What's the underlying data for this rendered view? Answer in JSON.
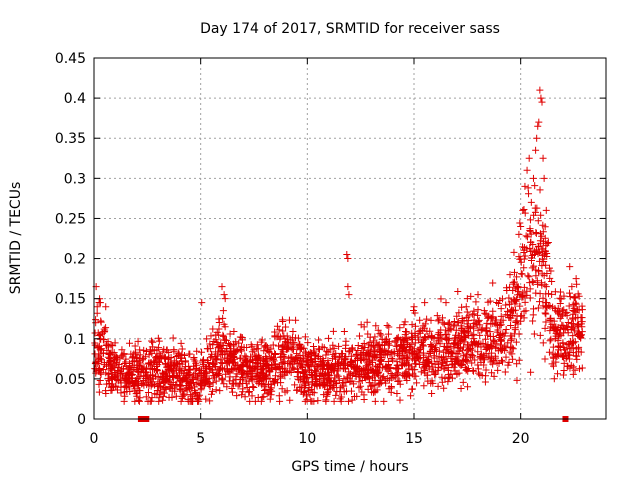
{
  "chart_data": {
    "type": "scatter",
    "title": "Day 174 of 2017, SRMTID for receiver sass",
    "xlabel": "GPS time / hours",
    "ylabel": "SRMTID / TECUs",
    "xlim": [
      0,
      24
    ],
    "ylim": [
      0,
      0.45
    ],
    "xticks": [
      0,
      5,
      10,
      15,
      20
    ],
    "xtick_labels": [
      "0",
      "5",
      "10",
      "15",
      "20"
    ],
    "yticks": [
      0,
      0.05,
      0.1,
      0.15,
      0.2,
      0.25,
      0.3,
      0.35,
      0.4,
      0.45
    ],
    "ytick_labels": [
      "0",
      "0.05",
      "0.1",
      "0.15",
      "0.2",
      "0.25",
      "0.3",
      "0.35",
      "0.4",
      "0.45"
    ],
    "grid": true,
    "marker": "+",
    "series_color": "#e00000",
    "seed": 174,
    "trend": [
      [
        0.0,
        0.09
      ],
      [
        0.5,
        0.08
      ],
      [
        1.0,
        0.06
      ],
      [
        1.5,
        0.055
      ],
      [
        2.0,
        0.055
      ],
      [
        3.0,
        0.06
      ],
      [
        4.0,
        0.06
      ],
      [
        4.5,
        0.045
      ],
      [
        5.0,
        0.045
      ],
      [
        5.5,
        0.07
      ],
      [
        6.0,
        0.08
      ],
      [
        6.5,
        0.07
      ],
      [
        7.0,
        0.06
      ],
      [
        8.0,
        0.06
      ],
      [
        9.0,
        0.08
      ],
      [
        9.5,
        0.07
      ],
      [
        10.0,
        0.06
      ],
      [
        11.0,
        0.06
      ],
      [
        12.0,
        0.065
      ],
      [
        13.0,
        0.07
      ],
      [
        14.0,
        0.075
      ],
      [
        15.0,
        0.08
      ],
      [
        16.0,
        0.085
      ],
      [
        17.0,
        0.09
      ],
      [
        18.0,
        0.095
      ],
      [
        19.0,
        0.1
      ],
      [
        19.5,
        0.12
      ],
      [
        20.0,
        0.16
      ],
      [
        20.5,
        0.19
      ],
      [
        21.0,
        0.2
      ],
      [
        21.5,
        0.12
      ],
      [
        22.0,
        0.1
      ],
      [
        22.5,
        0.11
      ],
      [
        23.0,
        0.12
      ]
    ],
    "highlights": [
      {
        "x": 0.1,
        "y": 0.165
      },
      {
        "x": 0.15,
        "y": 0.14
      },
      {
        "x": 0.3,
        "y": 0.145
      },
      {
        "x": 0.55,
        "y": 0.14
      },
      {
        "x": 5.05,
        "y": 0.145
      },
      {
        "x": 6.0,
        "y": 0.165
      },
      {
        "x": 6.1,
        "y": 0.155
      },
      {
        "x": 6.15,
        "y": 0.15
      },
      {
        "x": 11.85,
        "y": 0.205
      },
      {
        "x": 11.9,
        "y": 0.2
      },
      {
        "x": 11.9,
        "y": 0.165
      },
      {
        "x": 11.95,
        "y": 0.155
      },
      {
        "x": 15.0,
        "y": 0.14
      },
      {
        "x": 15.5,
        "y": 0.145
      },
      {
        "x": 16.5,
        "y": 0.145
      },
      {
        "x": 17.5,
        "y": 0.15
      },
      {
        "x": 18.0,
        "y": 0.155
      },
      {
        "x": 19.5,
        "y": 0.18
      },
      {
        "x": 20.0,
        "y": 0.24
      },
      {
        "x": 20.1,
        "y": 0.26
      },
      {
        "x": 20.2,
        "y": 0.29
      },
      {
        "x": 20.3,
        "y": 0.31
      },
      {
        "x": 20.4,
        "y": 0.325
      },
      {
        "x": 20.5,
        "y": 0.27
      },
      {
        "x": 20.6,
        "y": 0.3
      },
      {
        "x": 20.7,
        "y": 0.335
      },
      {
        "x": 20.75,
        "y": 0.35
      },
      {
        "x": 20.8,
        "y": 0.365
      },
      {
        "x": 20.85,
        "y": 0.37
      },
      {
        "x": 20.9,
        "y": 0.41
      },
      {
        "x": 20.95,
        "y": 0.4
      },
      {
        "x": 21.0,
        "y": 0.395
      },
      {
        "x": 21.05,
        "y": 0.325
      },
      {
        "x": 21.1,
        "y": 0.3
      },
      {
        "x": 21.2,
        "y": 0.26
      },
      {
        "x": 21.3,
        "y": 0.22
      },
      {
        "x": 22.3,
        "y": 0.19
      },
      {
        "x": 22.4,
        "y": 0.165
      },
      {
        "x": 22.6,
        "y": 0.175
      }
    ],
    "dropouts": [
      {
        "x": 2.2,
        "y": 0.0
      },
      {
        "x": 2.45,
        "y": 0.0
      },
      {
        "x": 22.1,
        "y": 0.0
      }
    ]
  }
}
